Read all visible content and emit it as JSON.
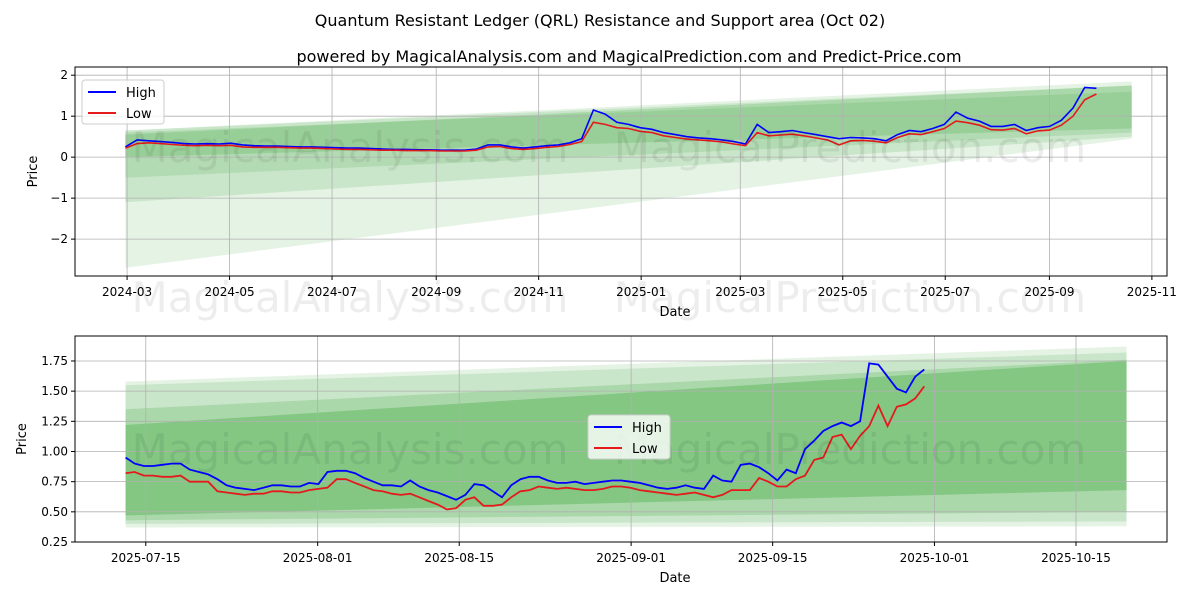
{
  "title": "Quantum Resistant Ledger (QRL) Resistance and Support area (Oct 02)",
  "subtitle": "powered by MagicalAnalysis.com and MagicalPrediction.com and Predict-Price.com",
  "watermarks": [
    "MagicalAnalysis.com",
    "MagicalPrediction.com"
  ],
  "colors": {
    "high": "#0000ff",
    "low": "#e41a1c",
    "band": "#2ca02c",
    "grid": "#b0b0b0"
  },
  "chart_data": [
    {
      "type": "line",
      "xlabel": "Date",
      "ylabel": "Price",
      "xlim": [
        "2024-01-30",
        "2025-11-10"
      ],
      "ylim": [
        -2.9,
        2.2
      ],
      "grid": true,
      "legend": "top-left",
      "xticks": [
        "2024-03",
        "2024-05",
        "2024-07",
        "2024-09",
        "2024-11",
        "2025-01",
        "2025-03",
        "2025-05",
        "2025-07",
        "2025-09",
        "2025-11"
      ],
      "xtick_dates": [
        "2024-03-01",
        "2024-05-01",
        "2024-07-01",
        "2024-09-01",
        "2024-11-01",
        "2025-01-01",
        "2025-03-01",
        "2025-05-01",
        "2025-07-01",
        "2025-09-01",
        "2025-11-01"
      ],
      "yticks": [
        2,
        1,
        0,
        -1,
        -2
      ],
      "ytick_labels": [
        "2",
        "1",
        "0",
        "−1",
        "−2"
      ],
      "series_start": "2024-02-29",
      "series_end": "2025-09-29",
      "series": [
        {
          "name": "High",
          "values": [
            0.25,
            0.42,
            0.4,
            0.38,
            0.36,
            0.33,
            0.32,
            0.33,
            0.32,
            0.34,
            0.3,
            0.28,
            0.27,
            0.27,
            0.26,
            0.25,
            0.25,
            0.24,
            0.23,
            0.22,
            0.22,
            0.21,
            0.2,
            0.19,
            0.19,
            0.18,
            0.18,
            0.17,
            0.17,
            0.17,
            0.2,
            0.3,
            0.3,
            0.25,
            0.22,
            0.25,
            0.28,
            0.3,
            0.35,
            0.45,
            1.15,
            1.05,
            0.85,
            0.8,
            0.72,
            0.68,
            0.6,
            0.55,
            0.5,
            0.47,
            0.45,
            0.42,
            0.38,
            0.32,
            0.8,
            0.6,
            0.62,
            0.65,
            0.6,
            0.55,
            0.5,
            0.45,
            0.48,
            0.47,
            0.45,
            0.4,
            0.55,
            0.65,
            0.62,
            0.7,
            0.8,
            1.1,
            0.95,
            0.88,
            0.75,
            0.75,
            0.8,
            0.65,
            0.72,
            0.75,
            0.9,
            1.2,
            1.7,
            1.68
          ]
        },
        {
          "name": "Low",
          "values": [
            0.22,
            0.33,
            0.35,
            0.33,
            0.31,
            0.29,
            0.28,
            0.29,
            0.28,
            0.29,
            0.25,
            0.24,
            0.24,
            0.24,
            0.23,
            0.22,
            0.22,
            0.21,
            0.2,
            0.19,
            0.19,
            0.18,
            0.17,
            0.17,
            0.16,
            0.16,
            0.16,
            0.15,
            0.15,
            0.15,
            0.17,
            0.25,
            0.26,
            0.21,
            0.19,
            0.21,
            0.24,
            0.26,
            0.31,
            0.38,
            0.85,
            0.8,
            0.72,
            0.7,
            0.63,
            0.6,
            0.52,
            0.48,
            0.44,
            0.42,
            0.4,
            0.37,
            0.32,
            0.28,
            0.6,
            0.52,
            0.54,
            0.56,
            0.52,
            0.47,
            0.42,
            0.3,
            0.4,
            0.41,
            0.39,
            0.35,
            0.48,
            0.57,
            0.55,
            0.62,
            0.7,
            0.88,
            0.84,
            0.78,
            0.67,
            0.66,
            0.7,
            0.57,
            0.64,
            0.66,
            0.78,
            1.0,
            1.4,
            1.54
          ]
        }
      ],
      "bands": [
        {
          "start": "2024-02-29",
          "end": "2025-10-20",
          "lower": [
            -2.7,
            0.45
          ],
          "upper": [
            0.65,
            1.85
          ],
          "opacity": 0.12
        },
        {
          "start": "2024-02-29",
          "end": "2025-10-20",
          "lower": [
            -1.1,
            0.5
          ],
          "upper": [
            0.65,
            1.75
          ],
          "opacity": 0.15
        },
        {
          "start": "2024-02-29",
          "end": "2025-10-20",
          "lower": [
            -0.5,
            0.6
          ],
          "upper": [
            0.6,
            1.6
          ],
          "opacity": 0.15
        },
        {
          "start": "2024-02-29",
          "end": "2025-10-20",
          "lower": [
            0.0,
            0.7
          ],
          "upper": [
            0.55,
            1.75
          ],
          "opacity": 0.2
        }
      ]
    },
    {
      "type": "line",
      "xlabel": "Date",
      "ylabel": "Price",
      "xlim": [
        "2025-07-08",
        "2025-10-24"
      ],
      "ylim": [
        0.25,
        1.957
      ],
      "grid": true,
      "legend": "center",
      "xticks": [
        "2025-07-15",
        "2025-08-01",
        "2025-08-15",
        "2025-09-01",
        "2025-09-15",
        "2025-10-01",
        "2025-10-15"
      ],
      "xtick_dates": [
        "2025-07-15",
        "2025-08-01",
        "2025-08-15",
        "2025-09-01",
        "2025-09-15",
        "2025-10-01",
        "2025-10-15"
      ],
      "yticks": [
        1.75,
        1.5,
        1.25,
        1.0,
        0.75,
        0.5,
        0.25
      ],
      "ytick_labels": [
        "1.75",
        "1.50",
        "1.25",
        "1.00",
        "0.75",
        "0.50",
        "0.25"
      ],
      "series_start": "2025-07-13",
      "series_end": "2025-09-30",
      "series": [
        {
          "name": "High",
          "values": [
            0.95,
            0.9,
            0.88,
            0.88,
            0.89,
            0.9,
            0.9,
            0.85,
            0.83,
            0.81,
            0.77,
            0.72,
            0.7,
            0.69,
            0.68,
            0.7,
            0.72,
            0.72,
            0.71,
            0.71,
            0.74,
            0.73,
            0.83,
            0.84,
            0.84,
            0.82,
            0.78,
            0.75,
            0.72,
            0.72,
            0.71,
            0.76,
            0.71,
            0.68,
            0.66,
            0.63,
            0.6,
            0.64,
            0.73,
            0.72,
            0.67,
            0.62,
            0.72,
            0.77,
            0.79,
            0.79,
            0.76,
            0.74,
            0.74,
            0.75,
            0.73,
            0.74,
            0.75,
            0.76,
            0.76,
            0.75,
            0.74,
            0.72,
            0.7,
            0.69,
            0.7,
            0.72,
            0.7,
            0.69,
            0.8,
            0.76,
            0.75,
            0.89,
            0.9,
            0.87,
            0.82,
            0.76,
            0.85,
            0.82,
            1.02,
            1.09,
            1.17,
            1.21,
            1.24,
            1.21,
            1.25,
            1.73,
            1.72,
            1.62,
            1.52,
            1.49,
            1.62,
            1.68
          ]
        },
        {
          "name": "Low",
          "values": [
            0.82,
            0.83,
            0.8,
            0.8,
            0.79,
            0.79,
            0.8,
            0.75,
            0.75,
            0.75,
            0.67,
            0.66,
            0.65,
            0.64,
            0.65,
            0.65,
            0.67,
            0.67,
            0.66,
            0.66,
            0.68,
            0.69,
            0.7,
            0.77,
            0.77,
            0.74,
            0.71,
            0.68,
            0.67,
            0.65,
            0.64,
            0.65,
            0.62,
            0.59,
            0.56,
            0.52,
            0.53,
            0.6,
            0.62,
            0.55,
            0.55,
            0.56,
            0.62,
            0.67,
            0.68,
            0.71,
            0.7,
            0.69,
            0.7,
            0.69,
            0.68,
            0.68,
            0.69,
            0.71,
            0.71,
            0.7,
            0.68,
            0.67,
            0.66,
            0.65,
            0.64,
            0.65,
            0.66,
            0.64,
            0.62,
            0.64,
            0.68,
            0.68,
            0.68,
            0.78,
            0.75,
            0.71,
            0.71,
            0.77,
            0.8,
            0.93,
            0.95,
            1.12,
            1.14,
            1.02,
            1.13,
            1.21,
            1.38,
            1.21,
            1.37,
            1.39,
            1.44,
            1.54
          ]
        }
      ],
      "bands": [
        {
          "start": "2025-07-13",
          "end": "2025-10-20",
          "lower": [
            0.37,
            0.38
          ],
          "upper": [
            1.58,
            1.87
          ],
          "opacity": 0.12
        },
        {
          "start": "2025-07-13",
          "end": "2025-10-20",
          "lower": [
            0.4,
            0.42
          ],
          "upper": [
            1.55,
            1.82
          ],
          "opacity": 0.15
        },
        {
          "start": "2025-07-13",
          "end": "2025-10-20",
          "lower": [
            0.43,
            0.5
          ],
          "upper": [
            1.35,
            1.76
          ],
          "opacity": 0.2
        },
        {
          "start": "2025-07-13",
          "end": "2025-10-20",
          "lower": [
            0.47,
            0.68
          ],
          "upper": [
            1.22,
            1.75
          ],
          "opacity": 0.3
        }
      ]
    }
  ]
}
